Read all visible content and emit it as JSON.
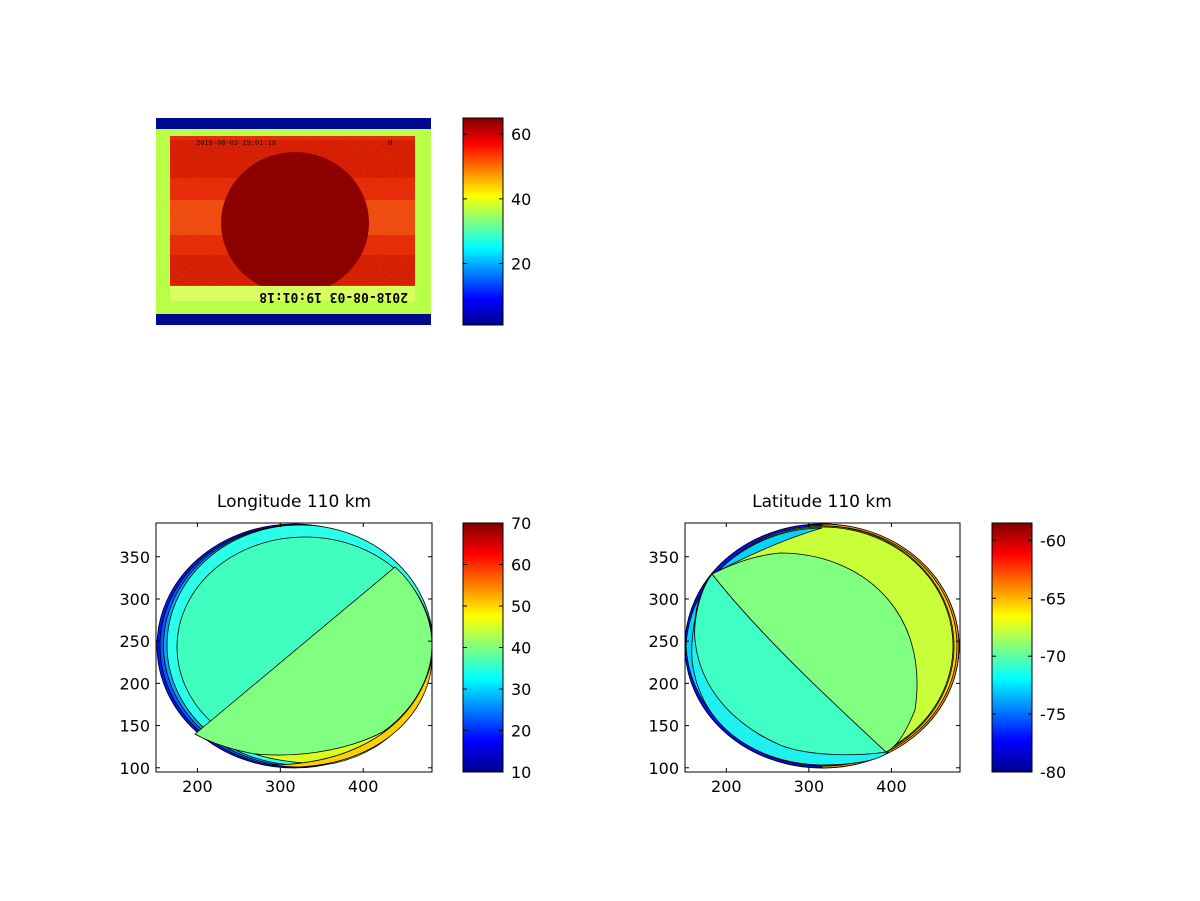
{
  "colors": {
    "background": "#ffffff",
    "axis": "#000000",
    "frame_dark": "#000a8f",
    "frame_light": "#b8ff48"
  },
  "image_panel": {
    "stamp_top": "2018-08-03 19:01:18",
    "stamp_bottom": "2018-08-03 19:01:18"
  },
  "chart_data": [
    {
      "type": "heatmap",
      "name": "image-panel",
      "title": "",
      "colormap": "jet",
      "colorbar": {
        "ticks": [
          20,
          40,
          60
        ],
        "range": [
          1,
          65
        ]
      }
    },
    {
      "type": "heatmap",
      "name": "longitude-map",
      "title": "Longitude 110 km",
      "colormap": "jet",
      "contour_levels": [
        10,
        15,
        20,
        25,
        30,
        35,
        40,
        45,
        50,
        55,
        60,
        65,
        70
      ],
      "x_ticks": [
        200,
        300,
        400
      ],
      "y_ticks": [
        100,
        150,
        200,
        250,
        300,
        350
      ],
      "xlim": [
        150,
        483
      ],
      "ylim": [
        95,
        390
      ],
      "colorbar": {
        "ticks": [
          10,
          20,
          30,
          40,
          50,
          60,
          70
        ],
        "range": [
          10,
          70
        ]
      }
    },
    {
      "type": "heatmap",
      "name": "latitude-map",
      "title": "Latitude 110 km",
      "colormap": "jet",
      "contour_levels": [
        -80,
        -78.5,
        -77,
        -75.5,
        -74,
        -72.5,
        -71,
        -69.5,
        -68,
        -66.5,
        -65,
        -63.5,
        -62,
        -60.5,
        -59
      ],
      "x_ticks": [
        200,
        300,
        400
      ],
      "y_ticks": [
        100,
        150,
        200,
        250,
        300,
        350
      ],
      "xlim": [
        150,
        483
      ],
      "ylim": [
        95,
        390
      ],
      "colorbar": {
        "ticks": [
          -80,
          -75,
          -70,
          -65,
          -60
        ],
        "range": [
          -80,
          -58.5
        ]
      }
    }
  ]
}
